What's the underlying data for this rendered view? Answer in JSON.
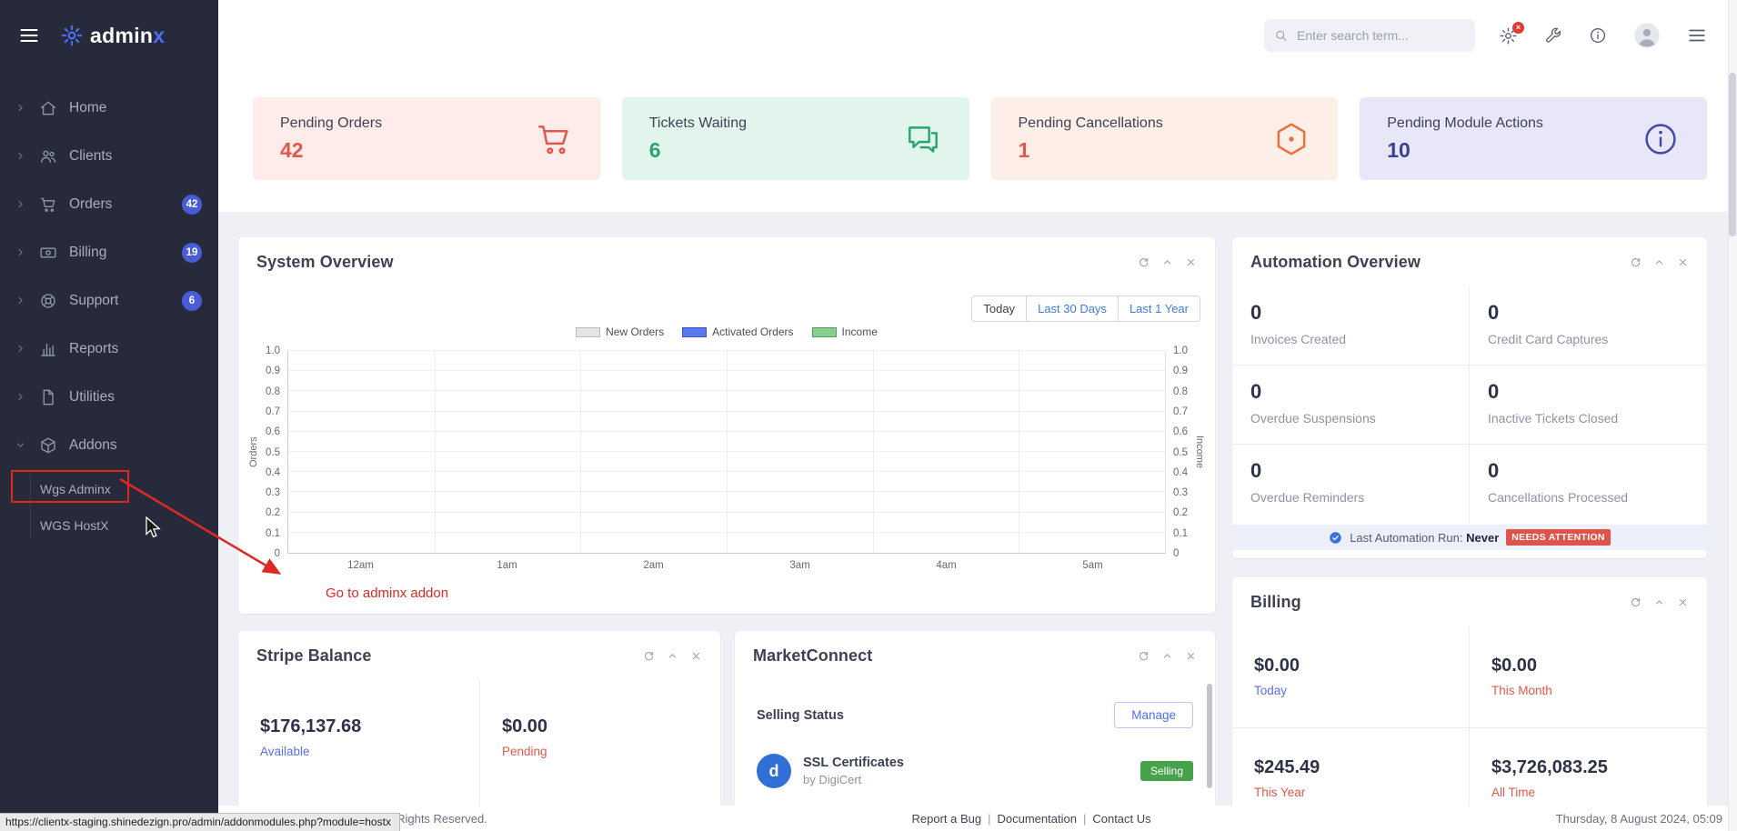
{
  "brand": {
    "admin": "admin",
    "x": "x"
  },
  "topbar": {
    "search_placeholder": "Enter search term...",
    "gear_badge": "×"
  },
  "sidebar": {
    "items": [
      {
        "label": "Home",
        "icon": "home-icon"
      },
      {
        "label": "Clients",
        "icon": "users-icon"
      },
      {
        "label": "Orders",
        "icon": "cart-icon",
        "badge": "42"
      },
      {
        "label": "Billing",
        "icon": "billing-icon",
        "badge": "19"
      },
      {
        "label": "Support",
        "icon": "support-icon",
        "badge": "6"
      },
      {
        "label": "Reports",
        "icon": "reports-icon"
      },
      {
        "label": "Utilities",
        "icon": "file-icon"
      },
      {
        "label": "Addons",
        "icon": "addons-icon",
        "expanded": true
      }
    ],
    "addons_children": [
      {
        "label": "Wgs Adminx"
      },
      {
        "label": "WGS HostX"
      }
    ]
  },
  "stats": [
    {
      "label": "Pending Orders",
      "value": "42",
      "icon": "cart-icon",
      "bg": "#fdecea",
      "fg": "#e2574c",
      "value_color": "#e2574c"
    },
    {
      "label": "Tickets Waiting",
      "value": "6",
      "icon": "chat-icon",
      "bg": "#e1f5ec",
      "fg": "#2aa572",
      "value_color": "#2aa572"
    },
    {
      "label": "Pending Cancellations",
      "value": "1",
      "icon": "hexagon-icon",
      "bg": "#fdeee7",
      "fg": "#e8703a",
      "value_color": "#e2574c"
    },
    {
      "label": "Pending Module Actions",
      "value": "10",
      "icon": "info-icon",
      "bg": "#e7e7f8",
      "fg": "#4347a8",
      "value_color": "#3c3f8f"
    }
  ],
  "system_overview": {
    "title": "System Overview",
    "ranges": [
      "Today",
      "Last 30 Days",
      "Last 1 Year"
    ]
  },
  "chart_data": {
    "type": "line",
    "x": [
      "12am",
      "1am",
      "2am",
      "3am",
      "4am",
      "5am"
    ],
    "series": [
      {
        "name": "New Orders",
        "values": [
          0,
          0,
          0,
          0,
          0,
          0
        ],
        "swatch_fill": "#e4e4e4",
        "swatch_border": "#bdbdbd"
      },
      {
        "name": "Activated Orders",
        "values": [
          0,
          0,
          0,
          0,
          0,
          0
        ],
        "swatch_fill": "#5b79ef",
        "swatch_border": "#3753cc"
      },
      {
        "name": "Income",
        "values": [
          0,
          0,
          0,
          0,
          0,
          0
        ],
        "swatch_fill": "#86cf8e",
        "swatch_border": "#49a257"
      }
    ],
    "ylim": [
      0,
      1.0
    ],
    "ytick_step": 0.1,
    "ylabel_left": "Orders",
    "ylabel_right": "Income",
    "legend_position": "top-center",
    "grid": true
  },
  "automation": {
    "title": "Automation Overview",
    "cells": [
      {
        "value": "0",
        "label": "Invoices Created"
      },
      {
        "value": "0",
        "label": "Credit Card Captures"
      },
      {
        "value": "0",
        "label": "Overdue Suspensions"
      },
      {
        "value": "0",
        "label": "Inactive Tickets Closed"
      },
      {
        "value": "0",
        "label": "Overdue Reminders"
      },
      {
        "value": "0",
        "label": "Cancellations Processed"
      }
    ],
    "footer_label": "Last Automation Run:",
    "footer_value": "Never",
    "footer_badge": "NEEDS ATTENTION"
  },
  "billing_panel": {
    "title": "Billing",
    "cells": [
      {
        "value": "$0.00",
        "label": "Today",
        "label_color": "#5b6fe8"
      },
      {
        "value": "$0.00",
        "label": "This Month",
        "label_color": "#e2574c"
      },
      {
        "value": "$245.49",
        "label": "This Year",
        "label_color": "#e2574c"
      },
      {
        "value": "$3,726,083.25",
        "label": "All Time",
        "label_color": "#e2574c"
      }
    ]
  },
  "stripe": {
    "title": "Stripe Balance",
    "cells": [
      {
        "value": "$176,137.68",
        "label": "Available",
        "label_color": "#5b6fe8"
      },
      {
        "value": "$0.00",
        "label": "Pending",
        "label_color": "#e2574c"
      }
    ]
  },
  "marketconnect": {
    "title": "MarketConnect",
    "section": "Selling Status",
    "manage": "Manage",
    "items": [
      {
        "initial": "d",
        "name": "SSL Certificates",
        "by": "by DigiCert",
        "status": "Selling"
      }
    ]
  },
  "annotations": {
    "arrow_label": "Go to adminx addon",
    "statusbar_url": "https://clientx-staging.shinedezign.pro/admin/addonmodules.php?module=hostx"
  },
  "footer": {
    "copyright": "Copyright © WHMCS 2024. All Rights Reserved.",
    "links": [
      "Report a Bug",
      "Documentation",
      "Contact Us"
    ],
    "datetime": "Thursday, 8 August 2024, 05:09"
  }
}
